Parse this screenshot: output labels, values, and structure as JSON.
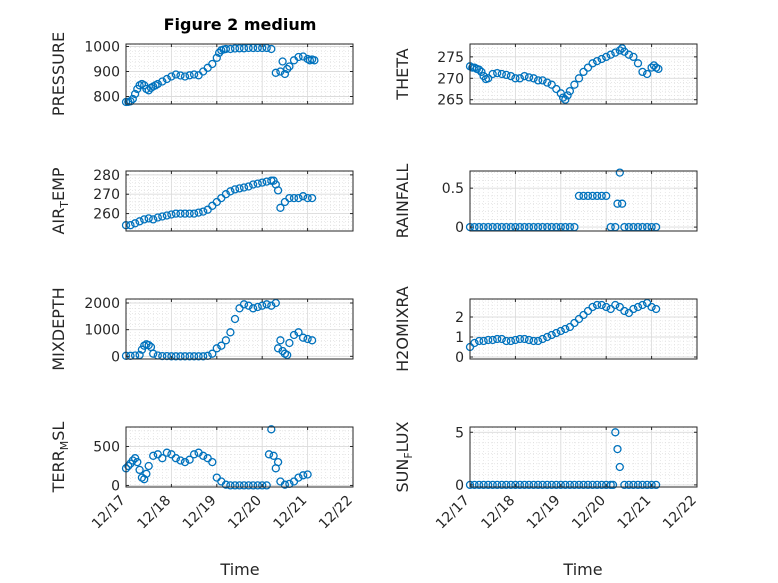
{
  "figure": {
    "title": "Figure 2 medium",
    "xlabel": "Time",
    "x_ticks": [
      "12/17",
      "12/18",
      "12/19",
      "12/20",
      "12/21",
      "12/22"
    ],
    "marker_color": "#0072BD",
    "grid": true
  },
  "chart_data": [
    {
      "type": "scatter",
      "title": "Figure 2 medium",
      "ylabel": "PRESSURE",
      "ylabel_sub": "",
      "ylim": [
        770,
        1010
      ],
      "yticks": [
        800,
        900,
        1000
      ],
      "x": [
        0.0,
        0.05,
        0.1,
        0.15,
        0.2,
        0.25,
        0.3,
        0.35,
        0.4,
        0.45,
        0.5,
        0.55,
        0.6,
        0.65,
        0.7,
        0.8,
        0.9,
        1.0,
        1.1,
        1.2,
        1.3,
        1.4,
        1.5,
        1.6,
        1.7,
        1.8,
        1.9,
        2.0,
        2.05,
        2.1,
        2.15,
        2.2,
        2.3,
        2.4,
        2.5,
        2.6,
        2.7,
        2.8,
        2.9,
        3.0,
        3.1,
        3.2,
        3.3,
        3.4,
        3.45,
        3.5,
        3.55,
        3.6,
        3.7,
        3.8,
        3.9,
        4.0,
        4.05,
        4.1,
        4.15
      ],
      "y": [
        778,
        779,
        781,
        790,
        810,
        830,
        845,
        850,
        845,
        830,
        825,
        835,
        840,
        845,
        850,
        860,
        870,
        880,
        888,
        884,
        880,
        885,
        888,
        885,
        900,
        915,
        930,
        955,
        975,
        985,
        988,
        990,
        990,
        992,
        993,
        993,
        994,
        994,
        994,
        994,
        994,
        990,
        895,
        900,
        940,
        890,
        910,
        920,
        945,
        958,
        960,
        950,
        945,
        948,
        945
      ]
    },
    {
      "type": "scatter",
      "title": "",
      "ylabel": "THETA",
      "ylabel_sub": "",
      "ylim": [
        264,
        278
      ],
      "yticks": [
        265,
        270,
        275
      ],
      "x": [
        0.0,
        0.05,
        0.1,
        0.15,
        0.2,
        0.25,
        0.3,
        0.35,
        0.4,
        0.5,
        0.6,
        0.7,
        0.8,
        0.9,
        1.0,
        1.1,
        1.2,
        1.3,
        1.4,
        1.5,
        1.6,
        1.7,
        1.8,
        1.9,
        2.0,
        2.05,
        2.1,
        2.15,
        2.2,
        2.3,
        2.4,
        2.5,
        2.6,
        2.7,
        2.8,
        2.9,
        3.0,
        3.1,
        3.2,
        3.3,
        3.35,
        3.4,
        3.5,
        3.6,
        3.7,
        3.8,
        3.9,
        4.0,
        4.05,
        4.1,
        4.15
      ],
      "y": [
        272.8,
        272.5,
        272.5,
        272.2,
        272.0,
        271.5,
        270.5,
        269.8,
        270.0,
        271.0,
        271.2,
        271.0,
        270.8,
        270.5,
        270.0,
        270.0,
        270.5,
        270.2,
        270.0,
        269.5,
        269.5,
        269.0,
        268.5,
        267.5,
        266.5,
        265.5,
        265.0,
        266.0,
        267.0,
        268.5,
        270.0,
        271.5,
        272.5,
        273.5,
        274.0,
        274.5,
        275.0,
        275.5,
        276.0,
        276.5,
        277.0,
        276.2,
        275.5,
        275.0,
        273.5,
        271.5,
        271.0,
        272.5,
        273.0,
        272.5,
        272.2
      ]
    },
    {
      "type": "scatter",
      "title": "",
      "ylabel": "AIR",
      "ylabel_sub": "T",
      "ylabel_rest": "EMP",
      "ylim": [
        251,
        282
      ],
      "yticks": [
        260,
        270,
        280
      ],
      "x": [
        0.0,
        0.1,
        0.2,
        0.3,
        0.4,
        0.5,
        0.6,
        0.7,
        0.8,
        0.9,
        1.0,
        1.1,
        1.2,
        1.3,
        1.4,
        1.5,
        1.6,
        1.7,
        1.8,
        1.9,
        2.0,
        2.1,
        2.2,
        2.3,
        2.4,
        2.5,
        2.6,
        2.7,
        2.8,
        2.9,
        3.0,
        3.1,
        3.2,
        3.25,
        3.3,
        3.35,
        3.4,
        3.5,
        3.6,
        3.7,
        3.8,
        3.9,
        4.0,
        4.1
      ],
      "y": [
        254,
        254,
        255,
        256,
        257,
        257.5,
        257,
        258,
        258.5,
        259,
        259.5,
        260,
        260,
        260,
        260,
        260,
        260.5,
        261,
        262,
        264,
        266,
        268,
        270,
        271.5,
        272.5,
        273,
        273.5,
        274,
        275,
        275.5,
        276,
        276.5,
        277,
        277,
        275,
        272,
        263,
        266,
        268,
        268,
        268,
        269,
        268,
        268
      ]
    },
    {
      "type": "scatter",
      "title": "",
      "ylabel": "RAINFALL",
      "ylabel_sub": "",
      "ylim": [
        -0.05,
        0.72
      ],
      "yticks": [
        0,
        0.5
      ],
      "x": [
        0.0,
        0.1,
        0.2,
        0.3,
        0.4,
        0.5,
        0.6,
        0.7,
        0.8,
        0.9,
        1.0,
        1.1,
        1.2,
        1.3,
        1.4,
        1.5,
        1.6,
        1.7,
        1.8,
        1.9,
        2.0,
        2.1,
        2.2,
        2.3,
        2.4,
        2.5,
        2.6,
        2.7,
        2.8,
        2.9,
        3.0,
        3.1,
        3.2,
        3.25,
        3.3,
        3.35,
        3.4,
        3.5,
        3.6,
        3.7,
        3.8,
        3.9,
        4.0,
        4.1
      ],
      "y": [
        0,
        0,
        0,
        0,
        0,
        0,
        0,
        0,
        0,
        0,
        0,
        0,
        0,
        0,
        0,
        0,
        0,
        0,
        0,
        0,
        0,
        0,
        0,
        0,
        0.4,
        0.4,
        0.4,
        0.4,
        0.4,
        0.4,
        0.4,
        0,
        0,
        0.3,
        0.7,
        0.3,
        0,
        0,
        0,
        0,
        0,
        0,
        0,
        0
      ]
    },
    {
      "type": "scatter",
      "title": "",
      "ylabel": "MIXDEPTH",
      "ylabel_sub": "",
      "ylim": [
        -100,
        2150
      ],
      "yticks": [
        0,
        1000,
        2000
      ],
      "x": [
        0.0,
        0.1,
        0.2,
        0.3,
        0.35,
        0.4,
        0.45,
        0.5,
        0.55,
        0.6,
        0.7,
        0.8,
        0.9,
        1.0,
        1.1,
        1.2,
        1.3,
        1.4,
        1.5,
        1.6,
        1.7,
        1.8,
        1.9,
        2.0,
        2.1,
        2.2,
        2.3,
        2.4,
        2.5,
        2.6,
        2.7,
        2.8,
        2.9,
        3.0,
        3.1,
        3.2,
        3.3,
        3.35,
        3.4,
        3.45,
        3.5,
        3.55,
        3.6,
        3.7,
        3.8,
        3.9,
        4.0,
        4.1
      ],
      "y": [
        20,
        20,
        30,
        50,
        250,
        400,
        450,
        420,
        350,
        100,
        30,
        10,
        10,
        0,
        0,
        0,
        0,
        0,
        0,
        0,
        0,
        20,
        100,
        300,
        400,
        600,
        900,
        1400,
        1800,
        1950,
        1900,
        1800,
        1850,
        1900,
        1950,
        1900,
        2000,
        300,
        600,
        200,
        100,
        50,
        500,
        800,
        900,
        700,
        650,
        600
      ]
    },
    {
      "type": "scatter",
      "title": "",
      "ylabel": "H2OMIXRA",
      "ylabel_sub": "",
      "ylim": [
        -0.1,
        2.9
      ],
      "yticks": [
        0,
        1,
        2
      ],
      "x": [
        0.0,
        0.1,
        0.2,
        0.3,
        0.4,
        0.5,
        0.6,
        0.7,
        0.8,
        0.9,
        1.0,
        1.1,
        1.2,
        1.3,
        1.4,
        1.5,
        1.6,
        1.7,
        1.8,
        1.9,
        2.0,
        2.1,
        2.2,
        2.3,
        2.4,
        2.5,
        2.6,
        2.7,
        2.8,
        2.9,
        3.0,
        3.1,
        3.2,
        3.3,
        3.4,
        3.5,
        3.6,
        3.7,
        3.8,
        3.9,
        4.0,
        4.1
      ],
      "y": [
        0.5,
        0.7,
        0.8,
        0.8,
        0.85,
        0.85,
        0.9,
        0.9,
        0.8,
        0.8,
        0.85,
        0.9,
        0.9,
        0.85,
        0.8,
        0.8,
        0.9,
        1.0,
        1.1,
        1.2,
        1.3,
        1.4,
        1.5,
        1.7,
        1.9,
        2.1,
        2.3,
        2.5,
        2.6,
        2.6,
        2.5,
        2.4,
        2.6,
        2.5,
        2.3,
        2.2,
        2.4,
        2.5,
        2.6,
        2.7,
        2.5,
        2.4
      ]
    },
    {
      "type": "scatter",
      "title": "",
      "ylabel": "TERR",
      "ylabel_sub": "M",
      "ylabel_rest": "SL",
      "ylim": [
        -20,
        750
      ],
      "yticks": [
        0,
        500
      ],
      "x": [
        0.0,
        0.05,
        0.1,
        0.15,
        0.2,
        0.25,
        0.3,
        0.35,
        0.4,
        0.45,
        0.5,
        0.6,
        0.7,
        0.8,
        0.9,
        1.0,
        1.1,
        1.2,
        1.3,
        1.4,
        1.5,
        1.6,
        1.7,
        1.8,
        1.9,
        2.0,
        2.1,
        2.2,
        2.3,
        2.4,
        2.5,
        2.6,
        2.7,
        2.8,
        2.9,
        3.0,
        3.1,
        3.15,
        3.2,
        3.25,
        3.3,
        3.35,
        3.4,
        3.5,
        3.6,
        3.7,
        3.8,
        3.9,
        4.0
      ],
      "y": [
        220,
        250,
        280,
        320,
        350,
        300,
        200,
        100,
        80,
        150,
        250,
        380,
        400,
        350,
        420,
        400,
        350,
        320,
        300,
        330,
        400,
        420,
        380,
        350,
        300,
        100,
        50,
        10,
        0,
        0,
        0,
        0,
        0,
        0,
        0,
        0,
        0,
        400,
        720,
        380,
        220,
        300,
        50,
        10,
        20,
        50,
        100,
        130,
        140
      ]
    },
    {
      "type": "scatter",
      "title": "",
      "ylabel": "SUN",
      "ylabel_sub": "F",
      "ylabel_rest": "LUX",
      "ylim": [
        -0.2,
        5.5
      ],
      "yticks": [
        0,
        5
      ],
      "x": [
        0.0,
        0.1,
        0.2,
        0.3,
        0.4,
        0.5,
        0.6,
        0.7,
        0.8,
        0.9,
        1.0,
        1.1,
        1.2,
        1.3,
        1.4,
        1.5,
        1.6,
        1.7,
        1.8,
        1.9,
        2.0,
        2.1,
        2.2,
        2.3,
        2.4,
        2.5,
        2.6,
        2.7,
        2.8,
        2.9,
        3.0,
        3.1,
        3.15,
        3.2,
        3.25,
        3.3,
        3.4,
        3.5,
        3.6,
        3.7,
        3.8,
        3.9,
        4.0,
        4.1
      ],
      "y": [
        0,
        0,
        0,
        0,
        0,
        0,
        0,
        0,
        0,
        0,
        0,
        0,
        0,
        0,
        0,
        0,
        0,
        0,
        0,
        0,
        0,
        0,
        0,
        0,
        0,
        0,
        0,
        0,
        0,
        0,
        0,
        0,
        0,
        5.0,
        3.4,
        1.7,
        0,
        0,
        0,
        0,
        0,
        0,
        0,
        0
      ]
    }
  ]
}
